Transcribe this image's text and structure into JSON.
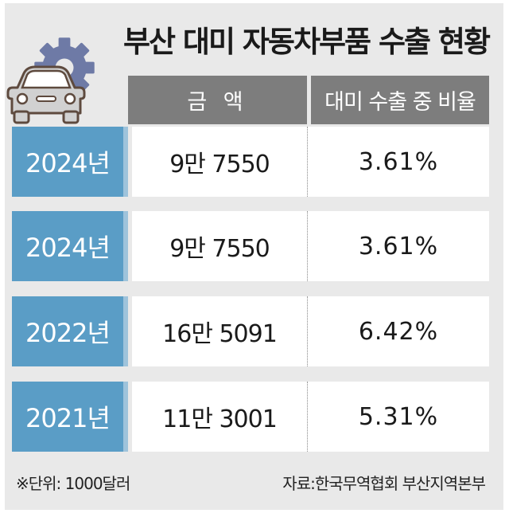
{
  "title": "부산 대미 자동차부품 수출 현황",
  "icons": {
    "gear": "gear-icon",
    "car": "car-icon"
  },
  "colors": {
    "background": "#e9e9e9",
    "header": "#7d7d7d",
    "year_cell": "#5a9dc6",
    "year_cell_edge": "#9ec3db",
    "gear": "#6e7aa6",
    "car": "#d1d1d1"
  },
  "chart_data": {
    "type": "table",
    "title": "부산 대미 자동차부품 수출 현황",
    "columns": [
      "금 액",
      "대미 수출 중 비율"
    ],
    "rows": [
      {
        "year": "2024년",
        "amount": "9만 7550",
        "ratio": "3.61%"
      },
      {
        "year": "2024년",
        "amount": "9만 7550",
        "ratio": "3.61%"
      },
      {
        "year": "2022년",
        "amount": "16만 5091",
        "ratio": "6.42%"
      },
      {
        "year": "2021년",
        "amount": "11만 3001",
        "ratio": "5.31%"
      }
    ],
    "unit_note": "※단위: 1000달러",
    "source": "자료:한국무역협회 부산지역본부"
  }
}
